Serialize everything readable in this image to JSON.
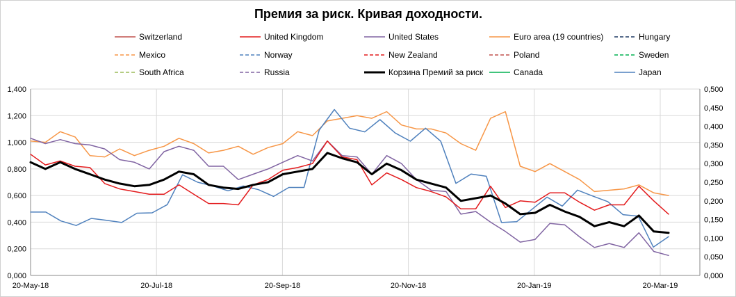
{
  "chart_data": {
    "type": "line",
    "title": "Премия за риск. Кривая доходности.",
    "x_ticks": [
      "20-May-18",
      "20-Jul-18",
      "20-Sep-18",
      "20-Nov-18",
      "20-Jan-19",
      "20-Mar-19"
    ],
    "y_left_range": [
      0,
      1.4
    ],
    "y_left_ticks": [
      "0,000",
      "0,200",
      "0,400",
      "0,600",
      "0,800",
      "1,000",
      "1,200",
      "1,400"
    ],
    "y_right_range": [
      0,
      0.5
    ],
    "y_right_ticks": [
      "0,000",
      "0,050",
      "0,100",
      "0,150",
      "0,200",
      "0,250",
      "0,300",
      "0,350",
      "0,400",
      "0,450",
      "0,500"
    ],
    "grid": true,
    "legend": [
      {
        "name": "Switzerland",
        "color": "#c0504d",
        "dash": false,
        "width": 1.5
      },
      {
        "name": "United Kingdom",
        "color": "#e31a1c",
        "dash": false,
        "width": 1.5
      },
      {
        "name": "United States",
        "color": "#8064a2",
        "dash": false,
        "width": 1.5
      },
      {
        "name": "Euro area (19 countries)",
        "color": "#f79646",
        "dash": false,
        "width": 1.5
      },
      {
        "name": "Hungary",
        "color": "#1f3864",
        "dash": true,
        "width": 1.5
      },
      {
        "name": "Mexico",
        "color": "#f79646",
        "dash": true,
        "width": 1.5
      },
      {
        "name": "Norway",
        "color": "#4f81bd",
        "dash": true,
        "width": 1.5
      },
      {
        "name": "New Zealand",
        "color": "#e31a1c",
        "dash": true,
        "width": 1.5
      },
      {
        "name": "Poland",
        "color": "#c0504d",
        "dash": true,
        "width": 1.5
      },
      {
        "name": "Sweden",
        "color": "#00b050",
        "dash": true,
        "width": 1.5
      },
      {
        "name": "South Africa",
        "color": "#9bbb59",
        "dash": true,
        "width": 1.5
      },
      {
        "name": "Russia",
        "color": "#8064a2",
        "dash": true,
        "width": 1.5
      },
      {
        "name": "Корзина Премий за риск",
        "color": "#000000",
        "dash": false,
        "width": 3
      },
      {
        "name": "Canada",
        "color": "#00b050",
        "dash": false,
        "width": 1.5
      },
      {
        "name": "Japan",
        "color": "#4f81bd",
        "dash": false,
        "width": 1.5
      }
    ],
    "series": [
      {
        "name": "Euro area (19 countries)",
        "axis": "left",
        "color": "#f79646",
        "width": 1.5,
        "values": [
          1.01,
          1.0,
          1.08,
          1.04,
          0.9,
          0.89,
          0.95,
          0.9,
          0.94,
          0.97,
          1.03,
          0.99,
          0.92,
          0.94,
          0.97,
          0.91,
          0.96,
          0.99,
          1.08,
          1.05,
          1.16,
          1.18,
          1.2,
          1.18,
          1.23,
          1.13,
          1.1,
          1.1,
          1.07,
          0.99,
          0.94,
          1.18,
          1.23,
          0.82,
          0.78,
          0.84,
          0.78,
          0.72,
          0.63,
          0.64,
          0.65,
          0.68,
          0.62,
          0.6
        ]
      },
      {
        "name": "Japan",
        "axis": "right",
        "color": "#4f81bd",
        "width": 1.5,
        "values": [
          0.17,
          0.17,
          0.146,
          0.134,
          0.153,
          0.148,
          0.142,
          0.167,
          0.168,
          0.19,
          0.27,
          0.25,
          0.24,
          0.227,
          0.24,
          0.23,
          0.212,
          0.236,
          0.236,
          0.39,
          0.445,
          0.395,
          0.385,
          0.418,
          0.382,
          0.36,
          0.395,
          0.36,
          0.247,
          0.272,
          0.266,
          0.142,
          0.144,
          0.177,
          0.21,
          0.186,
          0.229,
          0.213,
          0.198,
          0.163,
          0.159,
          0.076,
          0.104
        ]
      },
      {
        "name": "United States",
        "axis": "left",
        "color": "#8064a2",
        "width": 1.5,
        "values": [
          1.03,
          0.99,
          1.02,
          0.99,
          0.98,
          0.95,
          0.87,
          0.85,
          0.8,
          0.93,
          0.97,
          0.94,
          0.82,
          0.82,
          0.72,
          0.76,
          0.8,
          0.85,
          0.9,
          0.86,
          1.01,
          0.9,
          0.89,
          0.76,
          0.9,
          0.84,
          0.72,
          0.64,
          0.63,
          0.46,
          0.48,
          0.4,
          0.33,
          0.25,
          0.27,
          0.39,
          0.38,
          0.29,
          0.21,
          0.24,
          0.21,
          0.32,
          0.18,
          0.15
        ]
      },
      {
        "name": "United Kingdom",
        "axis": "left",
        "color": "#e31a1c",
        "width": 1.5,
        "values": [
          0.91,
          0.83,
          0.86,
          0.82,
          0.81,
          0.69,
          0.65,
          0.63,
          0.61,
          0.61,
          0.68,
          0.61,
          0.54,
          0.54,
          0.53,
          0.68,
          0.72,
          0.79,
          0.81,
          0.84,
          1.01,
          0.89,
          0.87,
          0.68,
          0.77,
          0.72,
          0.66,
          0.63,
          0.59,
          0.5,
          0.5,
          0.67,
          0.51,
          0.56,
          0.55,
          0.62,
          0.62,
          0.55,
          0.49,
          0.53,
          0.53,
          0.67,
          0.56,
          0.46
        ]
      },
      {
        "name": "Корзина Премий за риск",
        "axis": "left",
        "color": "#000000",
        "width": 3,
        "values": [
          0.85,
          0.8,
          0.85,
          0.8,
          0.76,
          0.72,
          0.69,
          0.67,
          0.68,
          0.72,
          0.78,
          0.76,
          0.68,
          0.66,
          0.65,
          0.68,
          0.7,
          0.76,
          0.78,
          0.8,
          0.92,
          0.88,
          0.85,
          0.76,
          0.84,
          0.79,
          0.72,
          0.69,
          0.66,
          0.56,
          0.58,
          0.6,
          0.54,
          0.46,
          0.47,
          0.53,
          0.48,
          0.44,
          0.37,
          0.4,
          0.37,
          0.45,
          0.33,
          0.32
        ]
      }
    ]
  }
}
